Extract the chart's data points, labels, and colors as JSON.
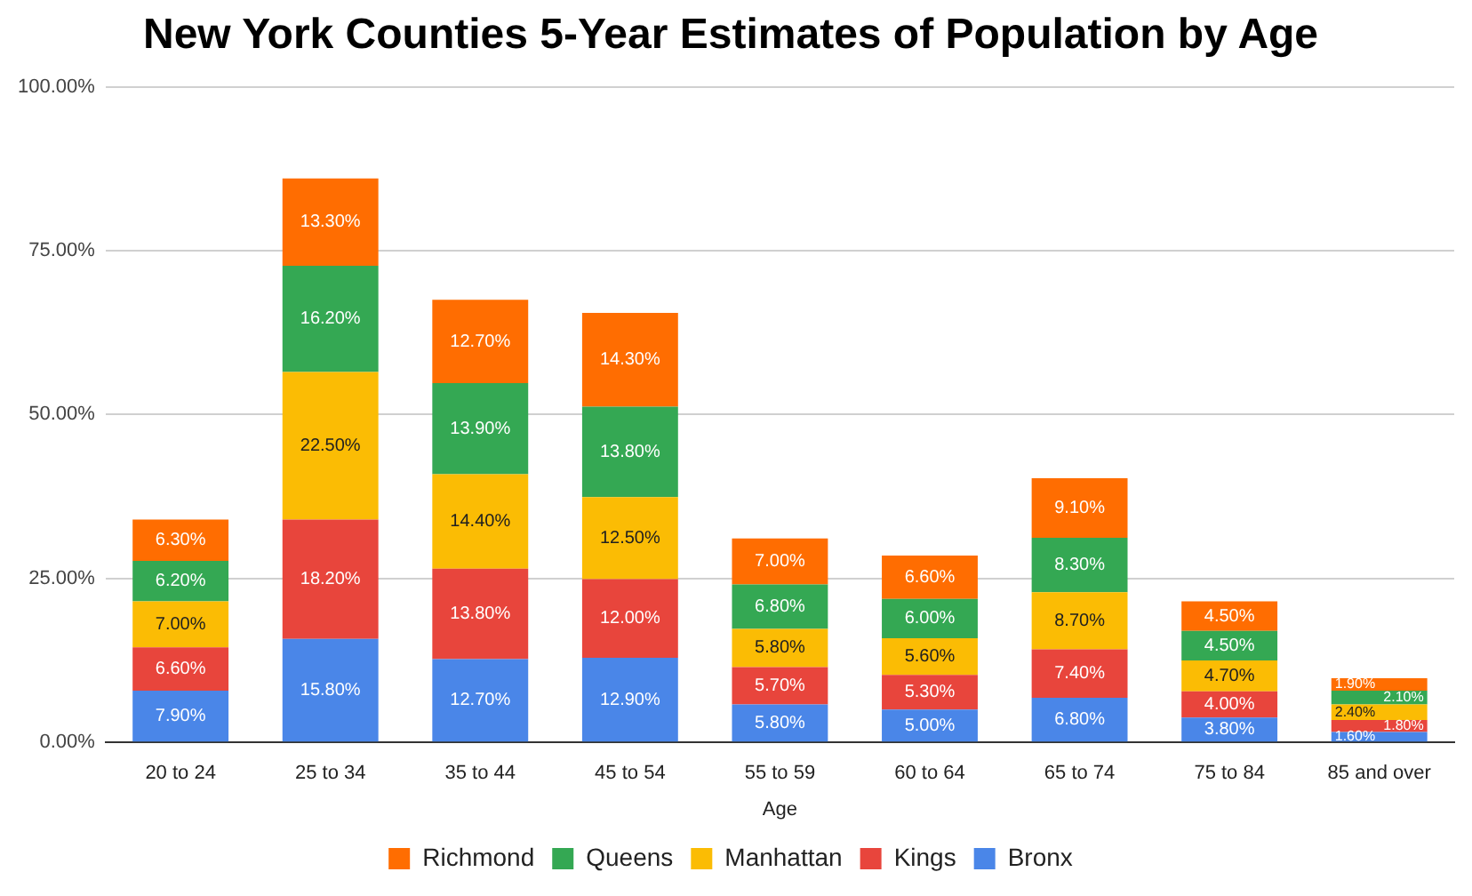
{
  "chart_data": {
    "type": "bar",
    "title": "New York Counties 5-Year Estimates of Population by Age",
    "xlabel": "Age",
    "stacked": true,
    "legend": "bottom",
    "grid": "y",
    "categories": [
      "20 to 24",
      "25 to 34",
      "35 to 44",
      "45 to 54",
      "55 to 59",
      "60 to 64",
      "65 to 74",
      "75 to 84",
      "85 and over"
    ],
    "ylim": [
      0,
      100
    ],
    "yticks": [
      {
        "value": 0,
        "label": "0.00%"
      },
      {
        "value": 25,
        "label": "25.00%"
      },
      {
        "value": 50,
        "label": "50.00%"
      },
      {
        "value": 75,
        "label": "75.00%"
      },
      {
        "value": 100,
        "label": "100.00%"
      }
    ],
    "series": [
      {
        "name": "Bronx",
        "color": "#4a86e8",
        "values": [
          7.9,
          15.8,
          12.7,
          12.9,
          5.8,
          5.0,
          6.8,
          3.8,
          1.6
        ],
        "value_labels": [
          "7.90%",
          "15.80%",
          "12.70%",
          "12.90%",
          "5.80%",
          "5.00%",
          "6.80%",
          "3.80%",
          "1.60%"
        ]
      },
      {
        "name": "Kings",
        "color": "#e8453c",
        "values": [
          6.6,
          18.2,
          13.8,
          12.0,
          5.7,
          5.3,
          7.4,
          4.0,
          1.8
        ],
        "value_labels": [
          "6.60%",
          "18.20%",
          "13.80%",
          "12.00%",
          "5.70%",
          "5.30%",
          "7.40%",
          "4.00%",
          "1.80%"
        ]
      },
      {
        "name": "Manhattan",
        "color": "#fbbc04",
        "values": [
          7.0,
          22.5,
          14.4,
          12.5,
          5.8,
          5.6,
          8.7,
          4.7,
          2.4
        ],
        "value_labels": [
          "7.00%",
          "22.50%",
          "14.40%",
          "12.50%",
          "5.80%",
          "5.60%",
          "8.70%",
          "4.70%",
          "2.40%"
        ]
      },
      {
        "name": "Queens",
        "color": "#34a853",
        "values": [
          6.2,
          16.2,
          13.9,
          13.8,
          6.8,
          6.0,
          8.3,
          4.5,
          2.1
        ],
        "value_labels": [
          "6.20%",
          "16.20%",
          "13.90%",
          "13.80%",
          "6.80%",
          "6.00%",
          "8.30%",
          "4.50%",
          "2.10%"
        ]
      },
      {
        "name": "Richmond",
        "color": "#ff6d01",
        "values": [
          6.3,
          13.3,
          12.7,
          14.3,
          7.0,
          6.6,
          9.1,
          4.5,
          1.9
        ],
        "value_labels": [
          "6.30%",
          "13.30%",
          "12.70%",
          "14.30%",
          "7.00%",
          "6.60%",
          "9.10%",
          "4.50%",
          "1.90%"
        ]
      }
    ]
  }
}
